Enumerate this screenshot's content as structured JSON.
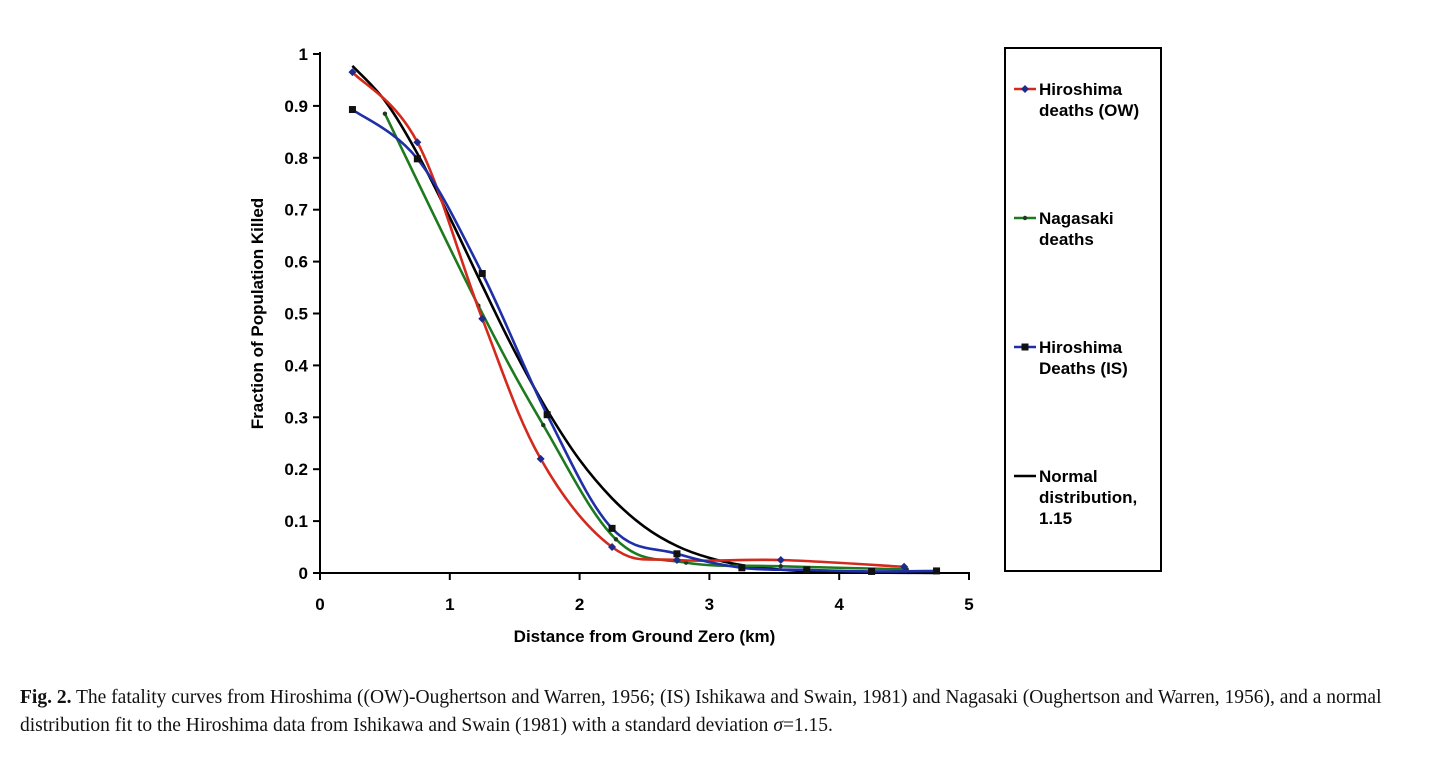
{
  "chart_data": {
    "type": "line",
    "title": "",
    "xlabel": "Distance from Ground Zero (km)",
    "ylabel": "Fraction of Population Killed",
    "xlim": [
      0,
      5
    ],
    "ylim": [
      0,
      1
    ],
    "x_ticks": [
      "0",
      "1",
      "2",
      "3",
      "4",
      "5"
    ],
    "y_ticks": [
      "0",
      "0.1",
      "0.2",
      "0.3",
      "0.4",
      "0.5",
      "0.6",
      "0.7",
      "0.8",
      "0.9",
      "1"
    ],
    "legend_position": "right",
    "series": [
      {
        "name": "Hiroshima deaths (OW)",
        "legend_lines": [
          "Hiroshima",
          "deaths (OW)"
        ],
        "color": "#d42a1e",
        "marker": "diamond",
        "marker_color": "#1f2a8a",
        "x": [
          0.25,
          0.75,
          1.25,
          1.7,
          2.25,
          2.75,
          3.55,
          4.5
        ],
        "y": [
          0.965,
          0.83,
          0.49,
          0.22,
          0.05,
          0.025,
          0.025,
          0.012
        ]
      },
      {
        "name": "Nagasaki deaths",
        "legend_lines": [
          "Nagasaki",
          "deaths"
        ],
        "color": "#1e7a1e",
        "marker": "dot",
        "marker_color": "#1e3a1e",
        "x": [
          0.5,
          1.22,
          1.72,
          2.28,
          2.82,
          3.55,
          4.52
        ],
        "y": [
          0.885,
          0.515,
          0.285,
          0.065,
          0.02,
          0.013,
          0.007
        ]
      },
      {
        "name": "Hiroshima Deaths (IS)",
        "legend_lines": [
          "Hiroshima",
          "Deaths (IS)"
        ],
        "color": "#1f2fa8",
        "marker": "square",
        "marker_color": "#111111",
        "x": [
          0.25,
          0.75,
          1.25,
          1.75,
          2.25,
          2.75,
          3.25,
          3.75,
          4.25,
          4.75
        ],
        "y": [
          0.893,
          0.798,
          0.577,
          0.305,
          0.086,
          0.037,
          0.01,
          0.006,
          0.003,
          0.004
        ]
      },
      {
        "name": "Normal distribution, 1.15",
        "legend_lines": [
          "Normal",
          "distribution,",
          "1.15"
        ],
        "color": "#000000",
        "marker": "none",
        "sigma": 1.15,
        "x": [
          0.25,
          0.5,
          0.75,
          1.0,
          1.25,
          1.5,
          1.75,
          2.0,
          2.25,
          2.5,
          2.75,
          3.0,
          3.25,
          3.5,
          3.75,
          4.0,
          4.25,
          4.5,
          4.75
        ],
        "y": [
          0.977,
          0.91,
          0.808,
          0.685,
          0.554,
          0.427,
          0.314,
          0.218,
          0.144,
          0.089,
          0.052,
          0.029,
          0.015,
          0.0075,
          0.0035,
          0.0015,
          0.0007,
          0.0003,
          0.0001
        ]
      }
    ]
  },
  "caption": {
    "label": "Fig. 2.",
    "text_before_sigma": " The fatality curves from Hiroshima ((OW)-Oughertson and Warren, 1956; (IS) Ishikawa and Swain, 1981) and Nagasaki (Oughertson and Warren, 1956), and a normal distribution fit to the Hiroshima data from Ishikawa and Swain (1981) with a standard deviation ",
    "sigma_symbol": "σ",
    "text_after_sigma": "=1.15."
  }
}
